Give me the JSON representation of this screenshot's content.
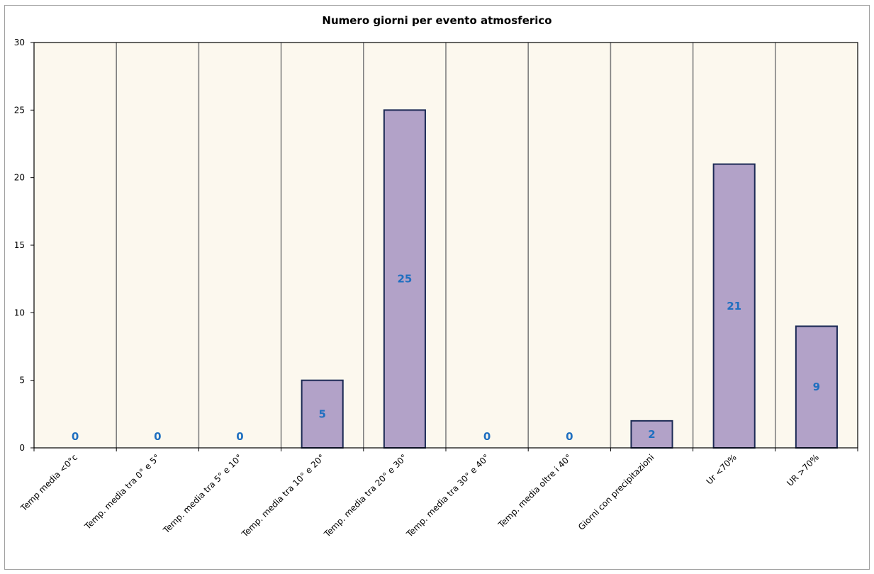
{
  "chart_data": {
    "type": "bar",
    "title": "Numero giorni  per evento atmosferico",
    "xlabel": "",
    "ylabel": "",
    "categories": [
      "Temp media <0°c",
      "Temp. media tra 0° e 5°",
      "Temp. media tra 5° e 10°",
      "Temp. media tra 10° e 20°",
      "Temp. media tra 20° e 30°",
      "Temp. media tra 30° e 40°",
      "Temp. media oltre i 40°",
      "Giorni con precipitazioni",
      "Ur  <70%",
      "UR >70%"
    ],
    "values": [
      0,
      0,
      0,
      5,
      25,
      0,
      0,
      2,
      21,
      9
    ],
    "data_labels": [
      "0",
      "0",
      "0",
      "5",
      "25",
      "0",
      "0",
      "2",
      "21",
      "9"
    ],
    "ylim": [
      0,
      30
    ],
    "yticks": [
      0,
      5,
      10,
      15,
      20,
      25,
      30
    ],
    "grid": "vertical",
    "legend": "none",
    "colors": {
      "bar_fill": "#b2a2c8",
      "bar_stroke": "#1c2a55",
      "plot_background": "#fcf8ee",
      "gridline": "#808080",
      "data_label": "#1f6fc0"
    }
  }
}
